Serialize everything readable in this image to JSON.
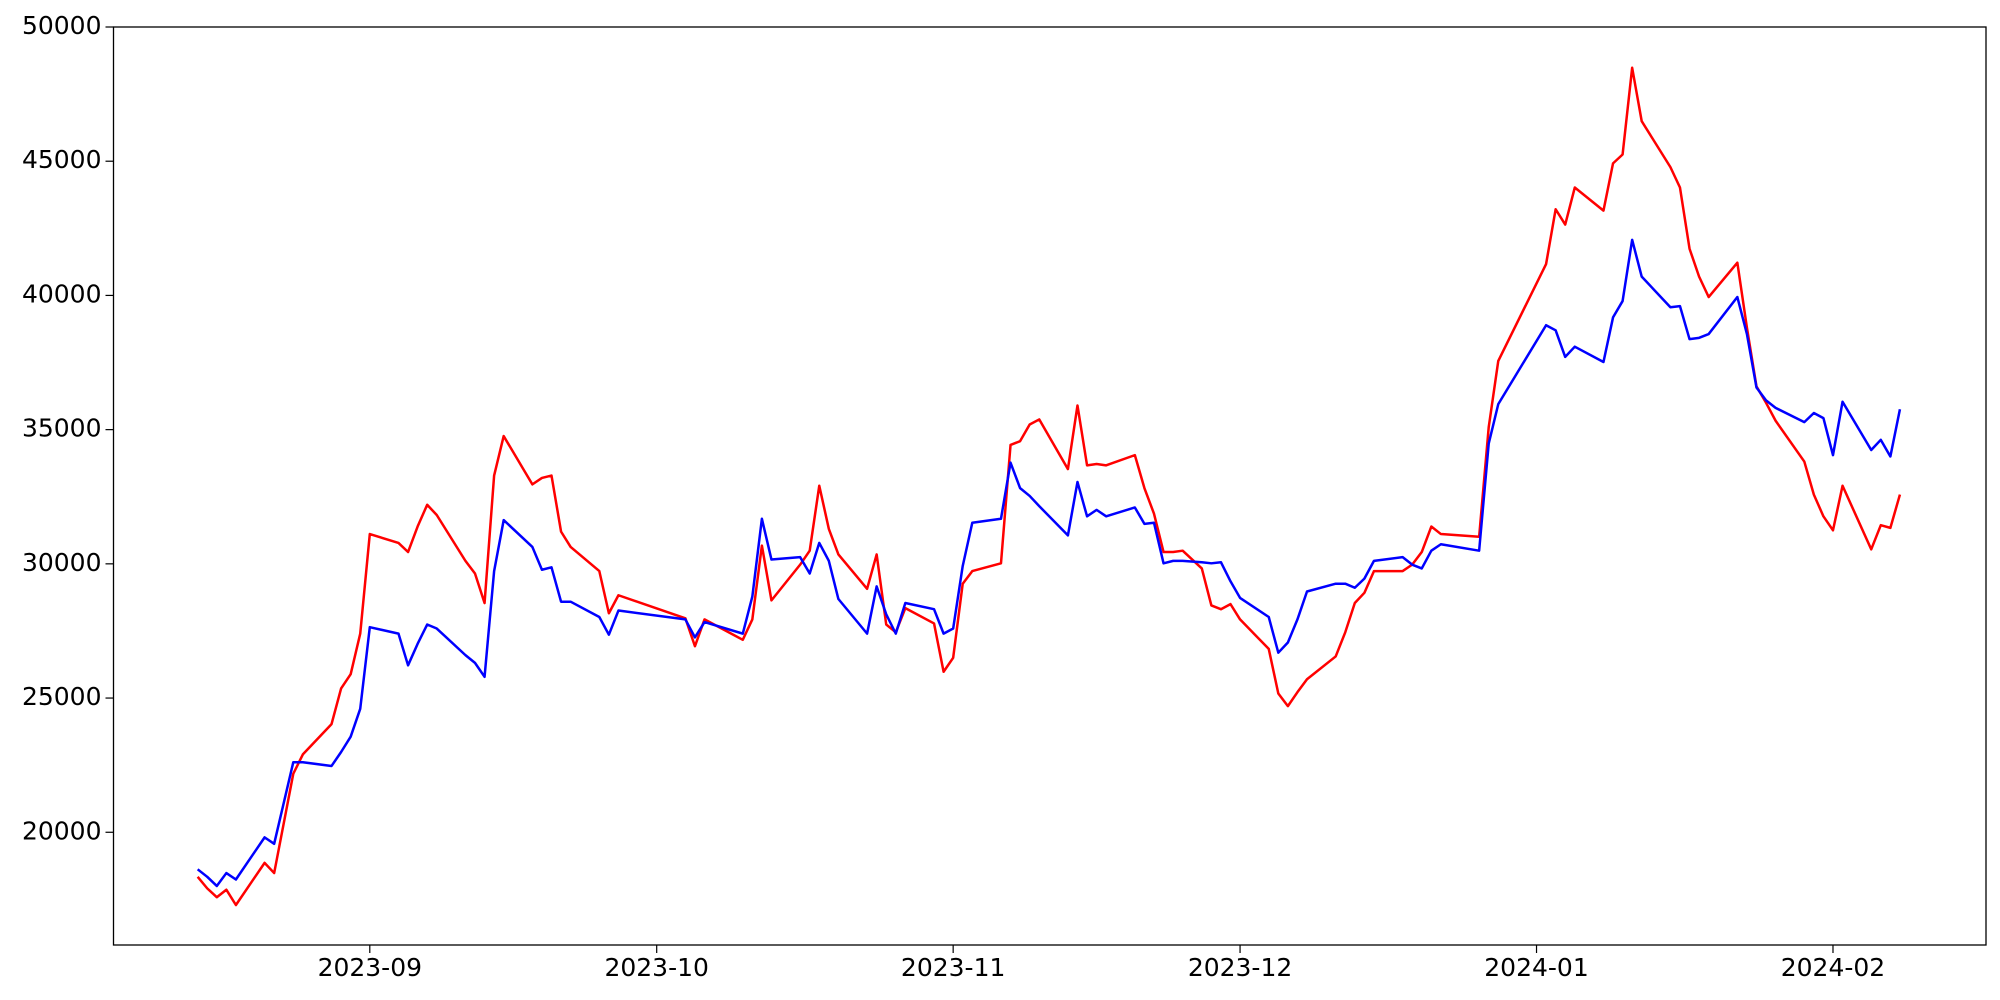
{
  "chart_data": {
    "type": "line",
    "x": [
      19583,
      19584,
      19585,
      19586,
      19587,
      19590,
      19591,
      19593,
      19594,
      19597,
      19598,
      19599,
      19600,
      19601,
      19604,
      19605,
      19606,
      19607,
      19608,
      19611,
      19612,
      19613,
      19614,
      19615,
      19618,
      19619,
      19620,
      19621,
      19622,
      19625,
      19626,
      19627,
      19634,
      19635,
      19636,
      19640,
      19641,
      19642,
      19643,
      19646,
      19647,
      19648,
      19649,
      19650,
      19653,
      19654,
      19655,
      19656,
      19657,
      19660,
      19661,
      19662,
      19663,
      19664,
      19667,
      19668,
      19669,
      19670,
      19671,
      19674,
      19675,
      19676,
      19677,
      19678,
      19681,
      19682,
      19683,
      19684,
      19685,
      19686,
      19688,
      19689,
      19690,
      19691,
      19692,
      19695,
      19696,
      19697,
      19698,
      19699,
      19702,
      19703,
      19704,
      19705,
      19706,
      19709,
      19710,
      19711,
      19712,
      19713,
      19717,
      19718,
      19719,
      19724,
      19725,
      19726,
      19727,
      19730,
      19731,
      19732,
      19733,
      19734,
      19737,
      19738,
      19739,
      19740,
      19741,
      19744,
      19745,
      19746,
      19747,
      19748,
      19751,
      19752,
      19753,
      19754,
      19755,
      19758,
      19759,
      19760,
      19761
    ],
    "series": [
      {
        "color": "#ff0000",
        "values": [
          18340,
          17910,
          17580,
          17860,
          17290,
          18860,
          18480,
          22180,
          22900,
          24030,
          25360,
          25890,
          27400,
          31110,
          30780,
          30440,
          31390,
          32200,
          31820,
          30110,
          29640,
          28540,
          33290,
          34760,
          32960,
          33200,
          33290,
          31200,
          30630,
          29730,
          28160,
          28830,
          27970,
          26930,
          27930,
          27170,
          27930,
          30680,
          28640,
          29970,
          30490,
          32910,
          31300,
          30350,
          29070,
          30350,
          27740,
          27450,
          28350,
          27780,
          25980,
          26500,
          29260,
          29730,
          30020,
          34430,
          34570,
          35190,
          35380,
          33530,
          35900,
          33670,
          33720,
          33670,
          34050,
          32820,
          31870,
          30440,
          30440,
          30490,
          29830,
          28450,
          28310,
          28500,
          27930,
          26830,
          25170,
          24700,
          25220,
          25700,
          26550,
          27450,
          28540,
          28920,
          29730,
          29730,
          29970,
          30440,
          31390,
          31110,
          31010,
          35090,
          37560,
          41170,
          43210,
          42640,
          44020,
          43160,
          44920,
          45250,
          48480,
          46490,
          44780,
          44020,
          41740,
          40700,
          39940,
          41220,
          38800,
          36610,
          36000,
          35330,
          33810,
          32580,
          31770,
          31250,
          32910,
          30540,
          31440,
          31340,
          32580
        ]
      },
      {
        "color": "#0000ff",
        "values": [
          18620,
          18340,
          18000,
          18480,
          18240,
          19810,
          19570,
          22610,
          22610,
          22470,
          22990,
          23560,
          24600,
          27640,
          27400,
          26220,
          27020,
          27740,
          27590,
          26600,
          26310,
          25790,
          29730,
          31630,
          30630,
          29780,
          29870,
          28590,
          28590,
          28020,
          27360,
          28260,
          27930,
          27260,
          27830,
          27400,
          28780,
          31680,
          30160,
          30250,
          29640,
          30780,
          30110,
          28690,
          27400,
          29160,
          28120,
          27400,
          28540,
          28310,
          27400,
          27590,
          29920,
          31530,
          31680,
          33770,
          32820,
          32530,
          32150,
          31060,
          33050,
          31770,
          32010,
          31770,
          32100,
          31490,
          31530,
          30020,
          30110,
          30110,
          30060,
          30020,
          30060,
          29350,
          28730,
          28020,
          26690,
          27070,
          27930,
          28970,
          29260,
          29260,
          29110,
          29450,
          30110,
          30250,
          29970,
          29830,
          30490,
          30730,
          30490,
          34480,
          35950,
          38890,
          38700,
          37710,
          38090,
          37520,
          39180,
          39790,
          42070,
          40700,
          39560,
          39600,
          38370,
          38420,
          38560,
          39940,
          38560,
          36570,
          36090,
          35810,
          35280,
          35620,
          35430,
          34050,
          36040,
          34240,
          34620,
          34000,
          35760
        ]
      }
    ],
    "xlim": [
      19574.2,
      19770
    ],
    "xticks": [
      {
        "value": 19601,
        "label": "2023-09"
      },
      {
        "value": 19631,
        "label": "2023-10"
      },
      {
        "value": 19662,
        "label": "2023-11"
      },
      {
        "value": 19692,
        "label": "2023-12"
      },
      {
        "value": 19723,
        "label": "2024-01"
      },
      {
        "value": 19754,
        "label": "2024-02"
      }
    ],
    "ylim": [
      15800,
      50000
    ],
    "yticks": [
      20000,
      25000,
      30000,
      35000,
      40000,
      45000,
      50000
    ]
  }
}
